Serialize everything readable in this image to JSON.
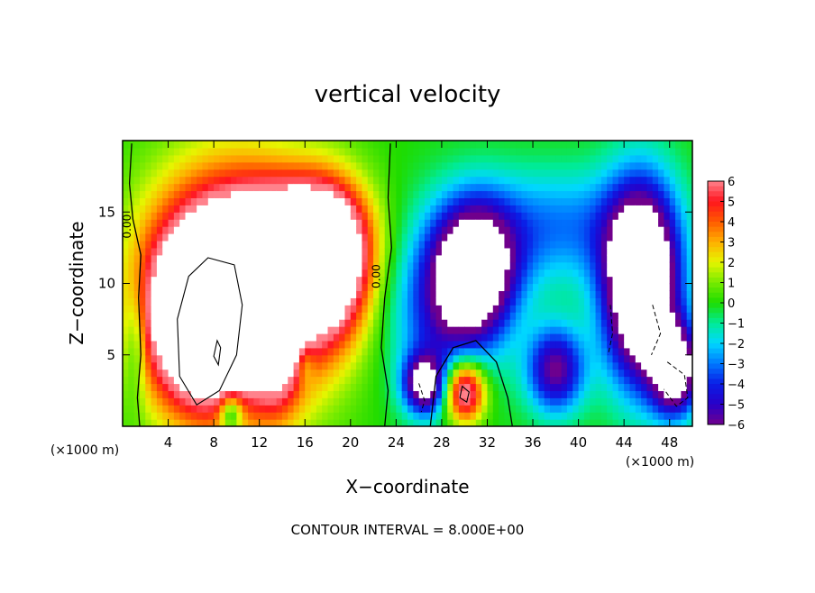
{
  "chart_data": {
    "type": "heatmap",
    "title": "vertical velocity",
    "xlabel": "X−coordinate",
    "ylabel": "Z−coordinate",
    "x_unit_left": "(×1000 m)",
    "x_unit_right": "(×1000 m)",
    "xlim": [
      0,
      50
    ],
    "ylim": [
      0,
      20
    ],
    "x_ticks": [
      4,
      8,
      12,
      16,
      20,
      24,
      28,
      32,
      36,
      40,
      44,
      48
    ],
    "x_tick_labels": [
      "4",
      "8",
      "12",
      "16",
      "20",
      "24",
      "28",
      "32",
      "36",
      "40",
      "44",
      "48"
    ],
    "y_ticks": [
      5,
      10,
      15
    ],
    "y_tick_labels": [
      "5",
      "10",
      "15"
    ],
    "contour_interval_text": "CONTOUR INTERVAL = 8.000E+00",
    "contour_labels": [
      "0.00",
      "0.00"
    ],
    "colorbar": {
      "min": -6,
      "max": 6,
      "tick_values": [
        6,
        5,
        4,
        3,
        2,
        1,
        0,
        -1,
        -2,
        -3,
        -4,
        -5,
        -6
      ],
      "tick_labels": [
        "6",
        "5",
        "4",
        "3",
        "2",
        "1",
        "0",
        "−1",
        "−2",
        "−3",
        "−4",
        "−5",
        "−6"
      ]
    },
    "features": [
      {
        "kind": "updraft",
        "x": 10.0,
        "z": 9.5,
        "rx": 7.5,
        "rz": 8.0,
        "amp": 11
      },
      {
        "kind": "updraft",
        "x": 6.5,
        "z": 7.5,
        "rx": 4.0,
        "rz": 5.5,
        "amp": 8
      },
      {
        "kind": "updraft",
        "x": 18.0,
        "z": 11.5,
        "rx": 3.5,
        "rz": 5.0,
        "amp": 9
      },
      {
        "kind": "updraft",
        "x": 13.5,
        "z": 7.0,
        "rx": 2.0,
        "rz": 5.0,
        "amp": 6
      },
      {
        "kind": "updraft",
        "x": 15.0,
        "z": 13.5,
        "rx": 5.5,
        "rz": 3.5,
        "amp": 5
      },
      {
        "kind": "updraft",
        "x": 30.0,
        "z": 2.5,
        "rx": 1.8,
        "rz": 2.2,
        "amp": 8
      },
      {
        "kind": "downdraft",
        "x": 31.0,
        "z": 11.0,
        "rx": 3.5,
        "rz": 4.5,
        "amp": -9
      },
      {
        "kind": "downdraft",
        "x": 45.5,
        "z": 10.0,
        "rx": 3.2,
        "rz": 6.5,
        "amp": -12
      },
      {
        "kind": "downdraft",
        "x": 48.5,
        "z": 4.0,
        "rx": 2.0,
        "rz": 3.0,
        "amp": -9
      },
      {
        "kind": "downdraft",
        "x": 38.0,
        "z": 4.0,
        "rx": 2.5,
        "rz": 3.0,
        "amp": -6
      },
      {
        "kind": "downdraft",
        "x": 26.5,
        "z": 3.0,
        "rx": 1.8,
        "rz": 2.0,
        "amp": -7
      },
      {
        "kind": "downdraft",
        "x": 28.0,
        "z": 8.0,
        "rx": 4.5,
        "rz": 6.0,
        "amp": -4
      },
      {
        "kind": "downdraft",
        "x": 38.0,
        "z": 14.0,
        "rx": 8.0,
        "rz": 4.0,
        "amp": -3
      },
      {
        "kind": "downdraft",
        "x": 1.2,
        "z": 6.0,
        "rx": 0.9,
        "rz": 4.0,
        "amp": -2
      },
      {
        "kind": "downdraft",
        "x": 9.5,
        "z": 1.0,
        "rx": 1.0,
        "rz": 1.3,
        "amp": -4
      },
      {
        "kind": "downdraft",
        "x": 16.0,
        "z": 4.5,
        "rx": 0.8,
        "rz": 1.5,
        "amp": -2
      }
    ],
    "zero_contours": [
      [
        [
          0.8,
          19.8
        ],
        [
          0.6,
          17.0
        ],
        [
          0.9,
          14.5
        ],
        [
          1.6,
          12.0
        ],
        [
          1.4,
          9.0
        ],
        [
          1.6,
          5.0
        ],
        [
          1.3,
          2.0
        ],
        [
          1.5,
          0.0
        ]
      ],
      [
        [
          23.5,
          19.8
        ],
        [
          23.3,
          16.0
        ],
        [
          23.6,
          12.5
        ],
        [
          23.0,
          9.0
        ],
        [
          22.7,
          5.5
        ],
        [
          23.3,
          2.5
        ],
        [
          23.0,
          0.0
        ]
      ],
      [
        [
          27.0,
          0.0
        ],
        [
          27.5,
          3.5
        ],
        [
          29.0,
          5.5
        ],
        [
          31.0,
          6.0
        ],
        [
          32.8,
          4.5
        ],
        [
          33.8,
          2.0
        ],
        [
          34.2,
          0.0
        ]
      ]
    ],
    "closed_contours": [
      [
        [
          7.5,
          11.8
        ],
        [
          9.8,
          11.3
        ],
        [
          10.5,
          8.5
        ],
        [
          10.0,
          5.0
        ],
        [
          8.5,
          2.5
        ],
        [
          6.5,
          1.5
        ],
        [
          5.0,
          3.5
        ],
        [
          4.8,
          7.5
        ],
        [
          5.8,
          10.5
        ],
        [
          7.5,
          11.8
        ]
      ],
      [
        [
          29.8,
          2.8
        ],
        [
          30.4,
          2.4
        ],
        [
          30.2,
          1.7
        ],
        [
          29.6,
          2.0
        ],
        [
          29.8,
          2.8
        ]
      ],
      [
        [
          8.3,
          6.0
        ],
        [
          8.6,
          5.5
        ],
        [
          8.4,
          4.3
        ],
        [
          8.0,
          4.9
        ],
        [
          8.3,
          6.0
        ]
      ]
    ],
    "dashed_contours": [
      [
        [
          42.8,
          8.5
        ],
        [
          43.0,
          6.5
        ],
        [
          42.6,
          5.0
        ]
      ],
      [
        [
          46.5,
          8.5
        ],
        [
          47.2,
          6.5
        ],
        [
          46.4,
          5.0
        ]
      ],
      [
        [
          47.8,
          4.5
        ],
        [
          49.3,
          3.6
        ],
        [
          49.6,
          2.0
        ],
        [
          48.6,
          1.4
        ],
        [
          47.5,
          2.6
        ]
      ],
      [
        [
          26.0,
          3.0
        ],
        [
          26.5,
          1.8
        ],
        [
          26.2,
          1.0
        ]
      ]
    ]
  }
}
